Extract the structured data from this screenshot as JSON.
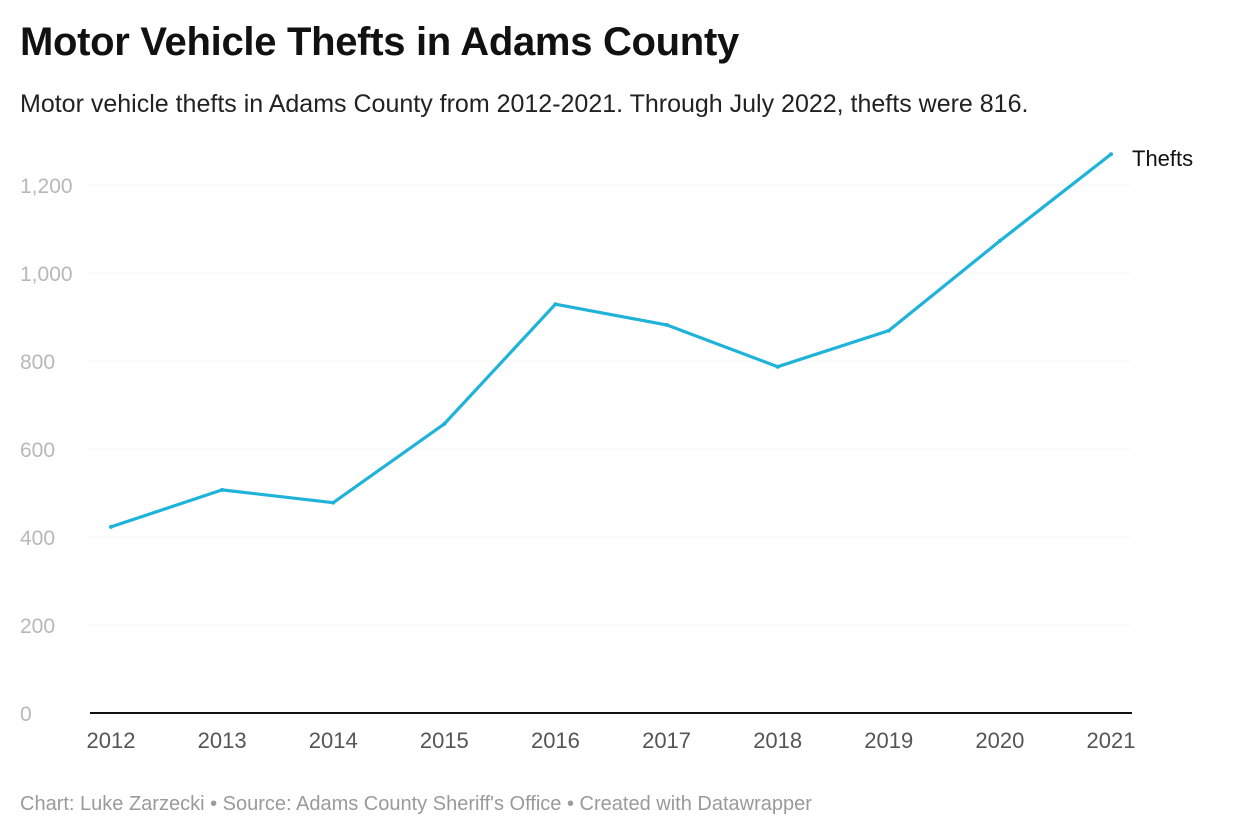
{
  "header": {
    "title": "Motor Vehicle Thefts in Adams County",
    "subtitle": "Motor vehicle thefts in Adams County from 2012-2021. Through July 2022, thefts were 816."
  },
  "footer": {
    "credit": "Chart: Luke Zarzecki • Source: Adams County Sheriff's Office • Created with Datawrapper"
  },
  "colors": {
    "line": "#1fb3da",
    "axis": "#111111",
    "grid": "#e6e6e6"
  },
  "chart_data": {
    "type": "line",
    "title": "Motor Vehicle Thefts in Adams County",
    "xlabel": "",
    "ylabel": "",
    "x": [
      "2012",
      "2013",
      "2014",
      "2015",
      "2016",
      "2017",
      "2018",
      "2019",
      "2020",
      "2021"
    ],
    "series": [
      {
        "name": "Thefts",
        "values": [
          423,
          507,
          478,
          657,
          929,
          882,
          787,
          869,
          1073,
          1270
        ]
      }
    ],
    "yticks": [
      0,
      200,
      400,
      600,
      800,
      1000,
      1200
    ],
    "ytick_labels": [
      "0",
      "200",
      "400",
      "600",
      "800",
      "1,000",
      "1,200"
    ],
    "ylim": [
      0,
      1300
    ],
    "grid": true,
    "legend": "line-end label"
  }
}
